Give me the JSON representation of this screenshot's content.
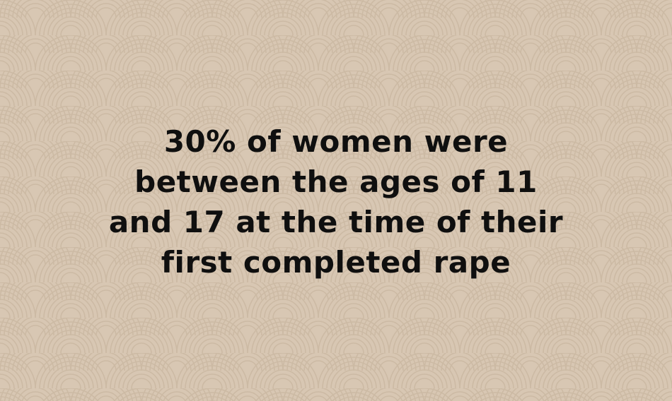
{
  "background": {
    "pattern": "seigaiha-wave",
    "base_color": "#d8c7b3",
    "line_color": "#c9b6a0"
  },
  "statement": {
    "lines": [
      "30% of women were",
      "between the ages of 11",
      "and 17 at the time of their",
      "first completed rape"
    ],
    "color": "#0f0f0f"
  }
}
